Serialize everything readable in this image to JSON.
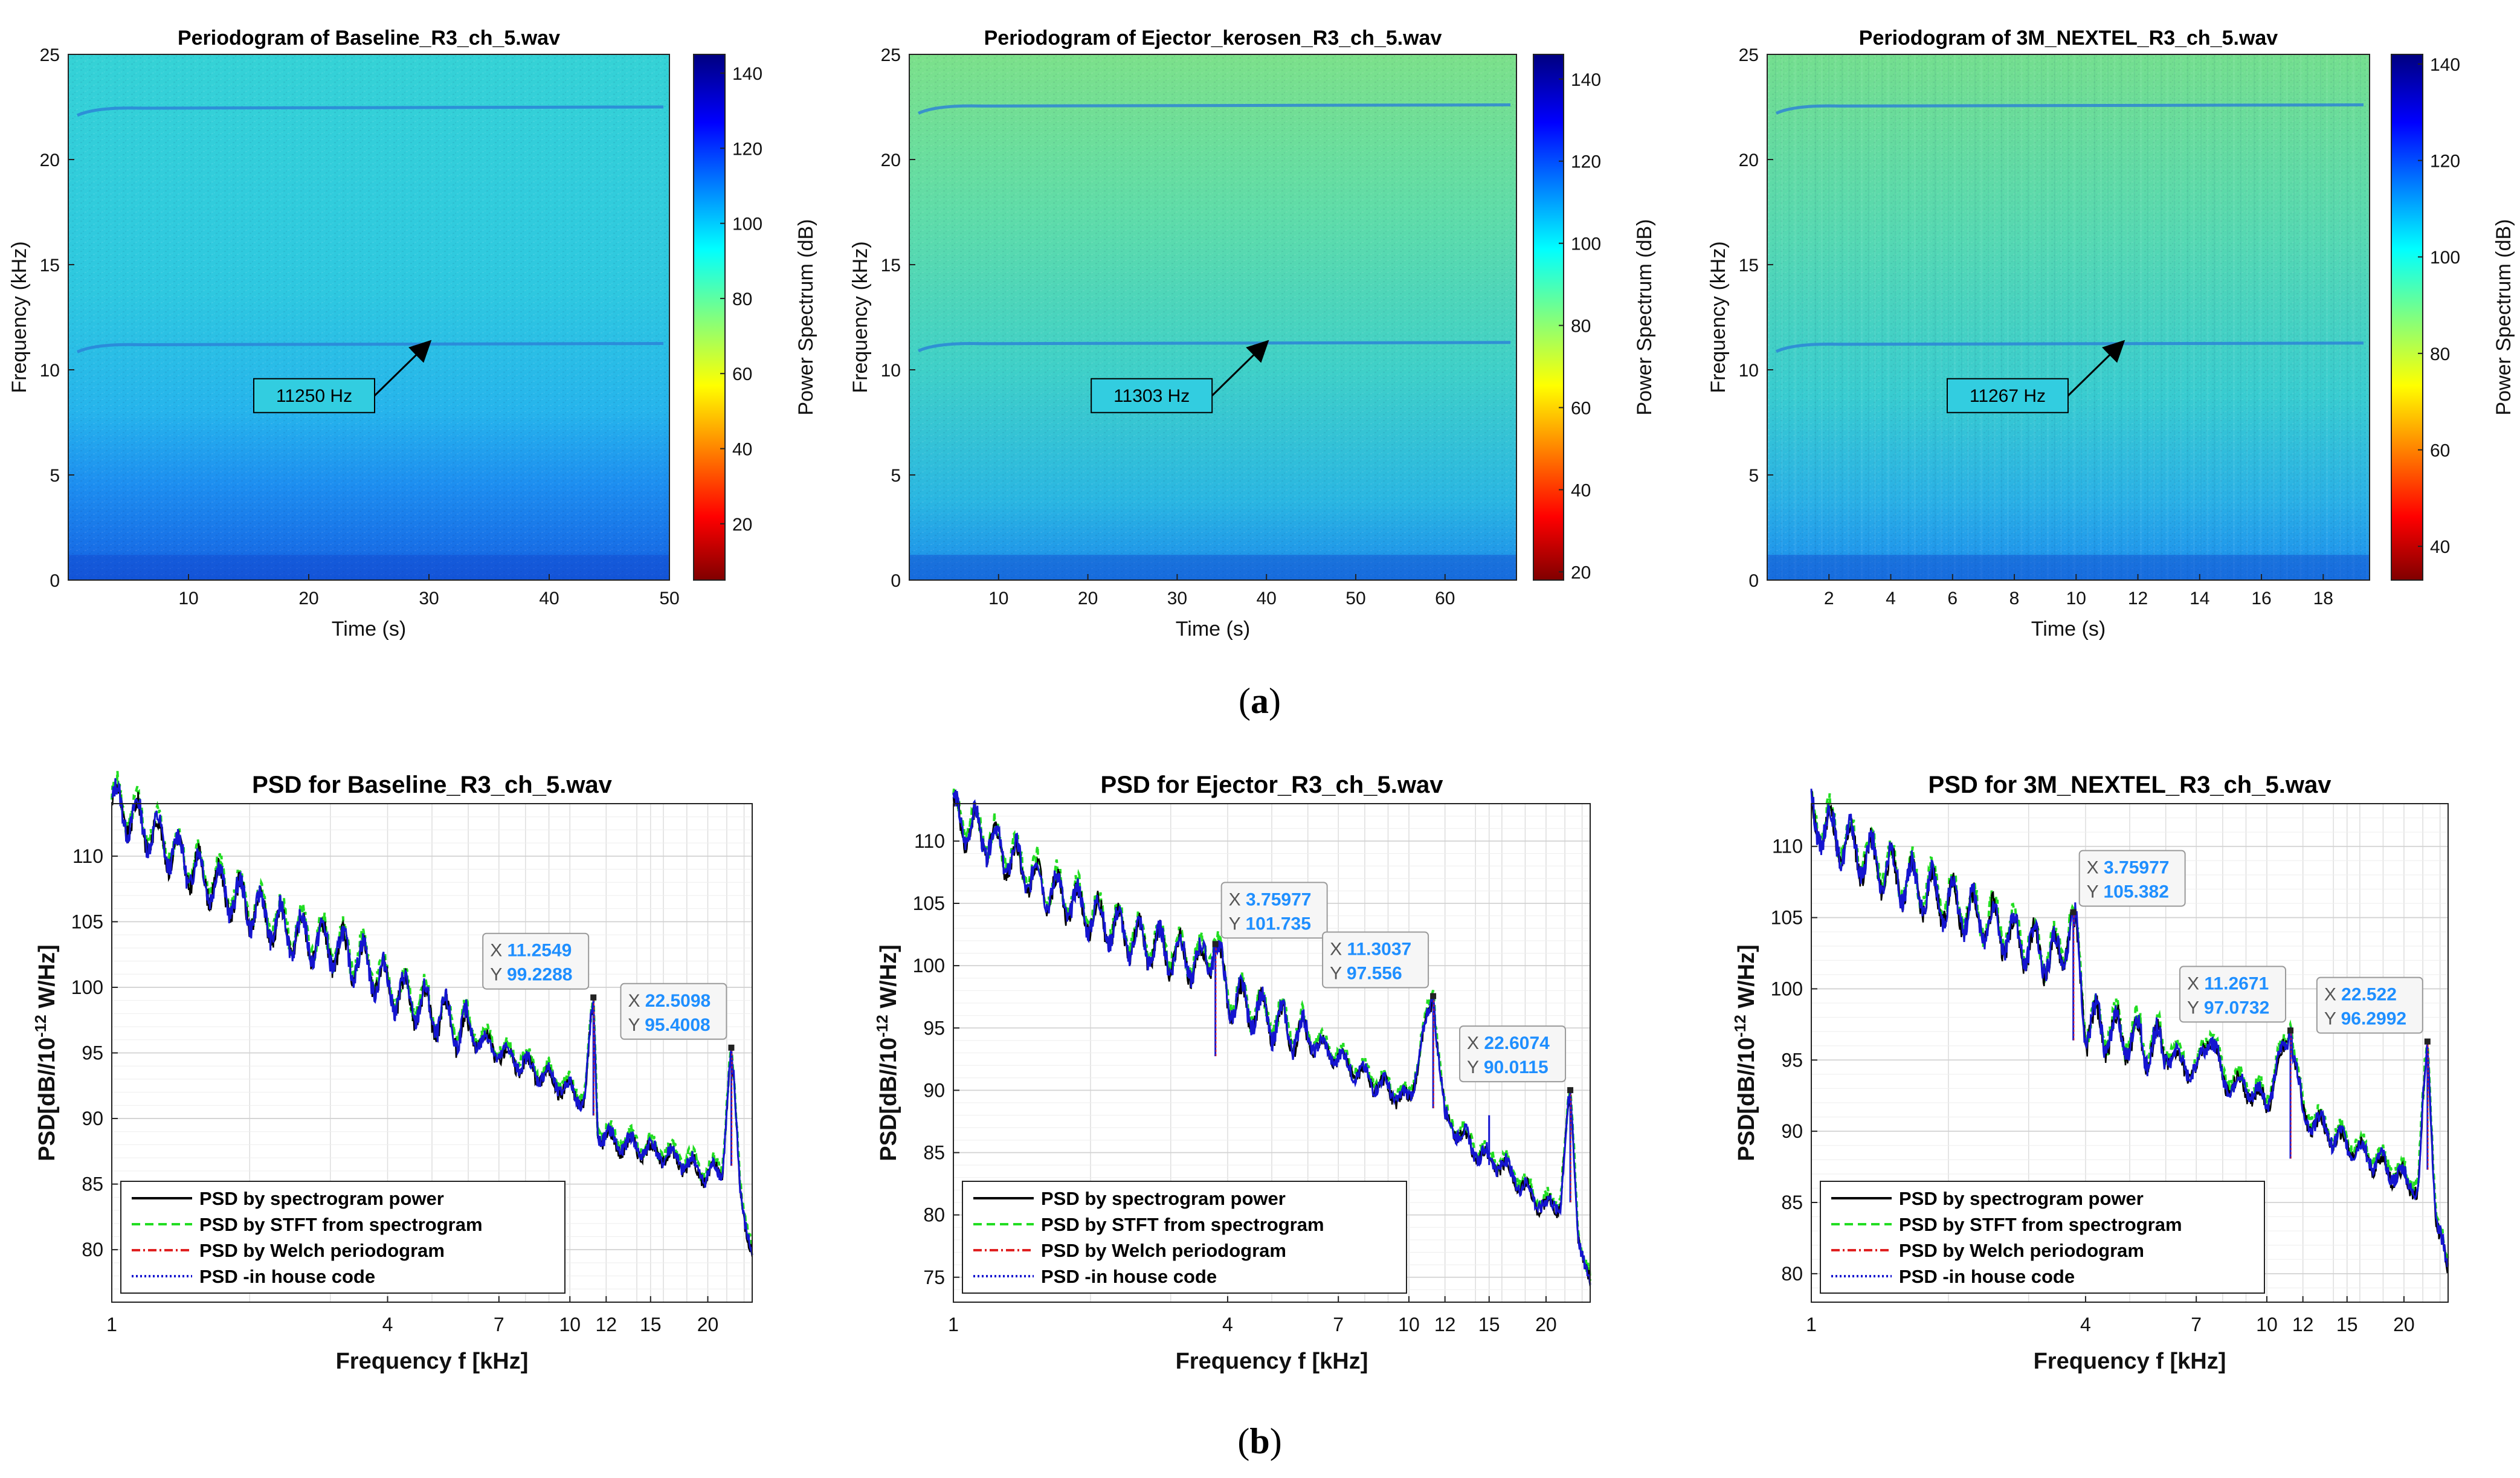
{
  "captions": {
    "a": "a",
    "b": "b"
  },
  "colorbar_label": "Power Spectrum (dB)",
  "colors": {
    "spectrogram_mid": "#28c8dc",
    "spectrogram_low": "#1a6fe0",
    "psd_black": "#000000",
    "psd_green": "#22dd22",
    "psd_red": "#e02020",
    "psd_blue": "#1515d0",
    "datatip_value": "#1f8fff"
  },
  "chart_data": [
    {
      "type": "heatmap",
      "title": "Periodogram of Baseline_R3_ch_5.wav",
      "xlabel": "Time (s)",
      "ylabel": "Frequency (kHz)",
      "xlim": [
        0,
        50
      ],
      "ylim": [
        0,
        25
      ],
      "xticks": [
        10,
        20,
        30,
        40,
        50
      ],
      "yticks": [
        0,
        5,
        10,
        15,
        20,
        25
      ],
      "colorbar": {
        "label": "Power Spectrum (dB)",
        "range": [
          5,
          145
        ],
        "ticks": [
          20,
          40,
          60,
          80,
          100,
          120,
          140
        ]
      },
      "tones_khz": [
        22.5,
        11.25
      ],
      "annotation": {
        "text": "11250 Hz",
        "arrow_to": [
          30,
          11.3
        ]
      }
    },
    {
      "type": "heatmap",
      "title": "Periodogram of Ejector_kerosen_R3_ch_5.wav",
      "xlabel": "Time (s)",
      "ylabel": "Frequency (kHz)",
      "xlim": [
        0,
        68
      ],
      "ylim": [
        0,
        25
      ],
      "xticks": [
        10,
        20,
        30,
        40,
        50,
        60
      ],
      "yticks": [
        0,
        5,
        10,
        15,
        20,
        25
      ],
      "colorbar": {
        "label": "Power Spectrum (dB)",
        "range": [
          18,
          146
        ],
        "ticks": [
          20,
          40,
          60,
          80,
          100,
          120,
          140
        ]
      },
      "tones_khz": [
        22.6,
        11.3
      ],
      "annotation": {
        "text": "11303 Hz",
        "arrow_to": [
          40,
          11.3
        ]
      }
    },
    {
      "type": "heatmap",
      "title": "Periodogram of 3M_NEXTEL_R3_ch_5.wav",
      "xlabel": "Time (s)",
      "ylabel": "Frequency (kHz)",
      "xlim": [
        0,
        19.5
      ],
      "ylim": [
        0,
        25
      ],
      "xticks": [
        2,
        4,
        6,
        8,
        10,
        12,
        14,
        16,
        18
      ],
      "yticks": [
        0,
        5,
        10,
        15,
        20,
        25
      ],
      "colorbar": {
        "label": "Power Spectrum (dB)",
        "range": [
          33,
          142
        ],
        "ticks": [
          40,
          60,
          80,
          100,
          120,
          140
        ]
      },
      "tones_khz": [
        22.6,
        11.27
      ],
      "annotation": {
        "text": "11267 Hz",
        "arrow_to": [
          11.5,
          11.3
        ]
      }
    },
    {
      "type": "line",
      "title": "PSD  for Baseline_R3_ch_5.wav",
      "xlabel": "Frequency f [kHz]",
      "ylabel": "PSD[dB//10",
      "ylabel_sup": "-12",
      "ylabel_end": " W/Hz]",
      "xscale": "log",
      "xlim": [
        1,
        25
      ],
      "ylim": [
        76,
        114
      ],
      "xticks": [
        1,
        4,
        7,
        10,
        12,
        15,
        20
      ],
      "yticks": [
        80,
        85,
        90,
        95,
        100,
        105,
        110
      ],
      "legend": [
        "PSD by spectrogram power",
        "PSD by STFT from spectrogram",
        "PSD by Welch periodogram",
        "PSD -in house code"
      ],
      "curve": {
        "x": [
          1,
          1.2,
          1.5,
          2,
          2.5,
          3,
          3.5,
          4,
          5,
          6,
          7,
          8,
          9,
          10,
          10.8,
          11.25,
          11.5,
          12,
          13,
          14,
          15,
          16,
          18,
          20,
          21.5,
          22.5,
          23.5,
          24.5,
          25
        ],
        "y": [
          114,
          112,
          109,
          106,
          104,
          103,
          102,
          100,
          98,
          96.5,
          95,
          94,
          93,
          92,
          91.5,
          99.2,
          89,
          88.4,
          88,
          87.8,
          87.5,
          87.2,
          86.5,
          85.6,
          86,
          95.4,
          85,
          81,
          79
        ]
      },
      "peaks": [
        {
          "x": 11.2549,
          "y": 99.2288,
          "label_x": "11.2549",
          "label_y": "99.2288"
        },
        {
          "x": 22.5098,
          "y": 95.4008,
          "label_x": "22.5098",
          "label_y": "95.4008"
        }
      ],
      "extra_spikes": []
    },
    {
      "type": "line",
      "title": "PSD  for Ejector_R3_ch_5.wav",
      "xlabel": "Frequency f [kHz]",
      "ylabel": "PSD[dB//10",
      "ylabel_sup": "-12",
      "ylabel_end": " W/Hz]",
      "xscale": "log",
      "xlim": [
        1,
        25
      ],
      "ylim": [
        73,
        113
      ],
      "xticks": [
        1,
        4,
        7,
        10,
        12,
        15,
        20
      ],
      "yticks": [
        75,
        80,
        85,
        90,
        95,
        100,
        105,
        110
      ],
      "legend": [
        "PSD by spectrogram power",
        "PSD by STFT from spectrogram",
        "PSD by Welch periodogram",
        "PSD -in house code"
      ],
      "curve": {
        "x": [
          1,
          1.2,
          1.5,
          2,
          2.5,
          3,
          3.5,
          3.75,
          4,
          5,
          6,
          7,
          8,
          9,
          10,
          11.3,
          12,
          13,
          14,
          15,
          16,
          18,
          20,
          21.5,
          22.6,
          23.5,
          24.5,
          25
        ],
        "y": [
          112,
          110,
          107,
          104,
          102,
          101,
          100,
          101.7,
          97.5,
          95.5,
          94,
          92.5,
          91,
          90,
          89,
          97.6,
          87.5,
          86.5,
          85,
          84.5,
          84,
          82,
          80.5,
          81,
          90,
          79,
          75,
          74
        ]
      },
      "peaks": [
        {
          "x": 3.75977,
          "y": 101.735,
          "label_x": "3.75977",
          "label_y": "101.735"
        },
        {
          "x": 11.3037,
          "y": 97.556,
          "label_x": "11.3037",
          "label_y": "97.556"
        },
        {
          "x": 22.6074,
          "y": 90.0115,
          "label_x": "22.6074",
          "label_y": "90.0115"
        }
      ],
      "extra_spikes": [
        {
          "x": 15,
          "y": 88
        }
      ]
    },
    {
      "type": "line",
      "title": "PSD  for 3M_NEXTEL_R3_ch_5.wav",
      "xlabel": "Frequency f [kHz]",
      "ylabel": "PSD[dB//10",
      "ylabel_sup": "-12",
      "ylabel_end": " W/Hz]",
      "xscale": "log",
      "xlim": [
        1,
        25
      ],
      "ylim": [
        78,
        113
      ],
      "xticks": [
        1,
        4,
        7,
        10,
        12,
        15,
        20
      ],
      "yticks": [
        80,
        85,
        90,
        95,
        100,
        105,
        110
      ],
      "legend": [
        "PSD by spectrogram power",
        "PSD by STFT from spectrogram",
        "PSD by Welch periodogram",
        "PSD -in house code"
      ],
      "curve": {
        "x": [
          1,
          1.2,
          1.5,
          2,
          2.5,
          3,
          3.5,
          3.75,
          4,
          5,
          6,
          7,
          7.5,
          8,
          9,
          10,
          11.27,
          12,
          13,
          14,
          15,
          16,
          18,
          20,
          21.5,
          22.5,
          23.5,
          24.5,
          25
        ],
        "y": [
          112,
          110,
          108,
          106,
          104.5,
          103,
          102,
          105.4,
          97.5,
          96.5,
          95.5,
          94,
          97,
          93.5,
          93,
          92,
          97.1,
          91,
          90.5,
          89.5,
          89,
          88.5,
          87.5,
          86.5,
          86,
          96.3,
          84,
          81,
          80
        ]
      },
      "peaks": [
        {
          "x": 3.75977,
          "y": 105.382,
          "label_x": "3.75977",
          "label_y": "105.382"
        },
        {
          "x": 11.2671,
          "y": 97.0732,
          "label_x": "11.2671",
          "label_y": "97.0732"
        },
        {
          "x": 22.522,
          "y": 96.2992,
          "label_x": "22.522",
          "label_y": "96.2992"
        }
      ],
      "extra_spikes": []
    }
  ]
}
